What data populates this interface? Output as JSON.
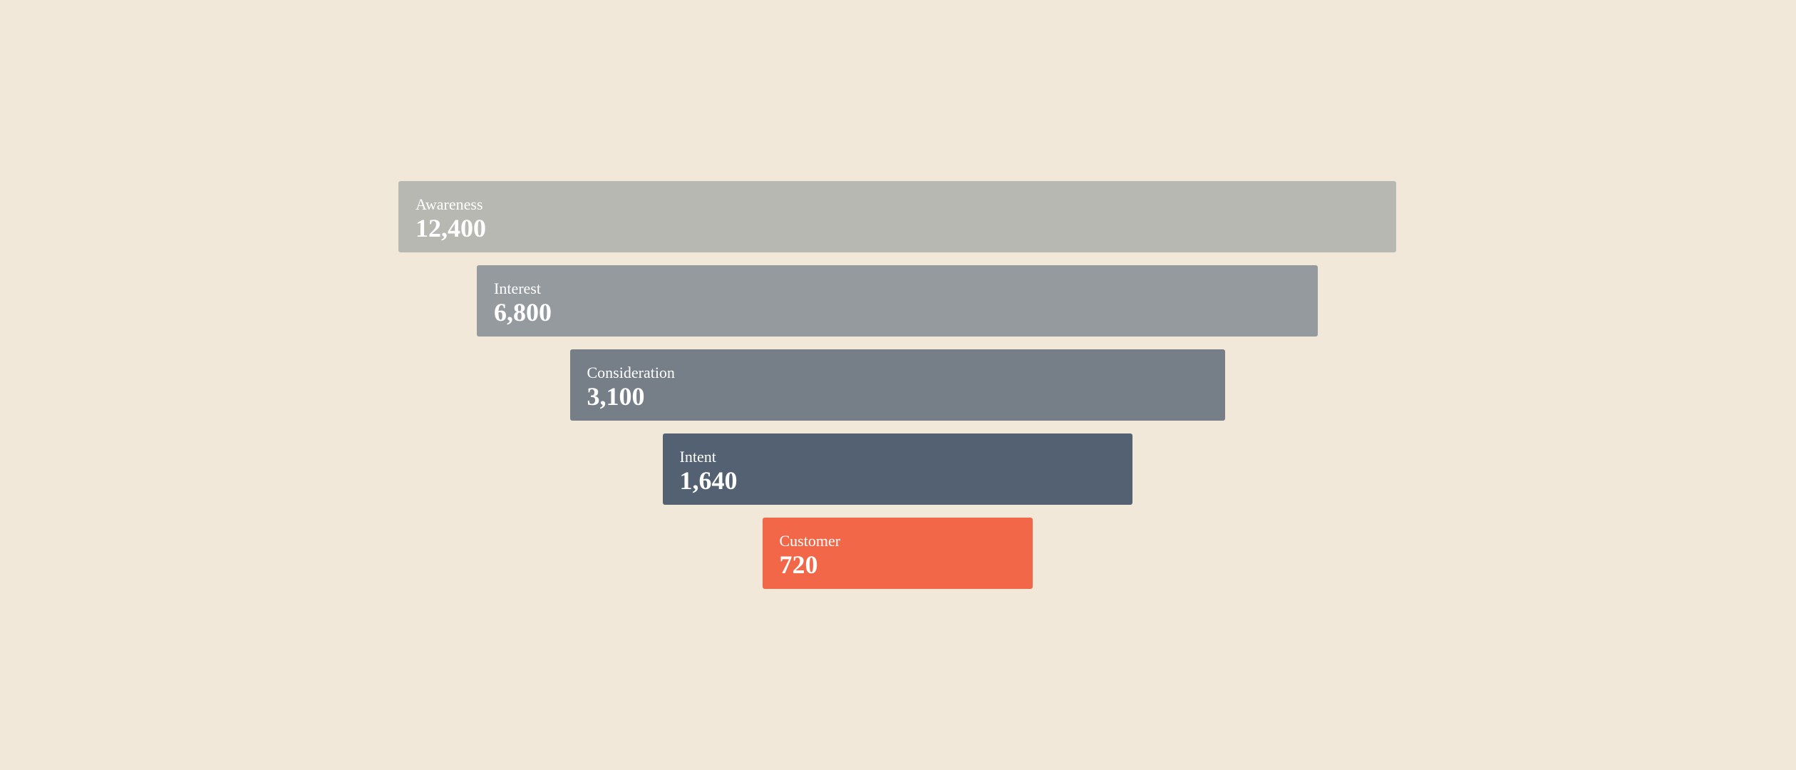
{
  "chart_data": {
    "type": "funnel",
    "categories": [
      "Awareness",
      "Interest",
      "Consideration",
      "Intent",
      "Customer"
    ],
    "values": [
      12400,
      6800,
      3100,
      1640,
      720
    ],
    "value_labels": [
      "12,400",
      "6,800",
      "3,100",
      "1,640",
      "720"
    ],
    "colors": [
      "#b8b8b3",
      "#959a9e",
      "#767e88",
      "#536172",
      "#f26748"
    ]
  }
}
